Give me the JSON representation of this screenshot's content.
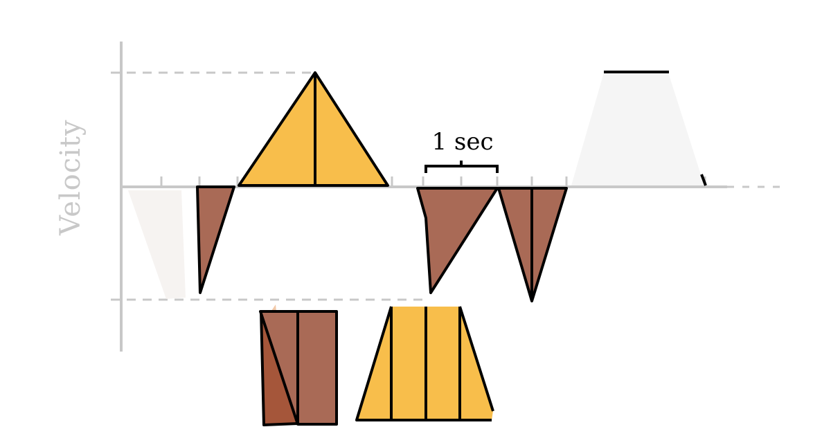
{
  "diagram": {
    "y_axis_label": "Velocity",
    "scale_label": "1 sec",
    "colors": {
      "positive_fill": "#F8BE4B",
      "negative_fill": "#A96A56",
      "outline": "#000000",
      "axis": "#C8C8C8",
      "guide": "#C8C8C8",
      "background": "#FFFFFF"
    }
  }
}
